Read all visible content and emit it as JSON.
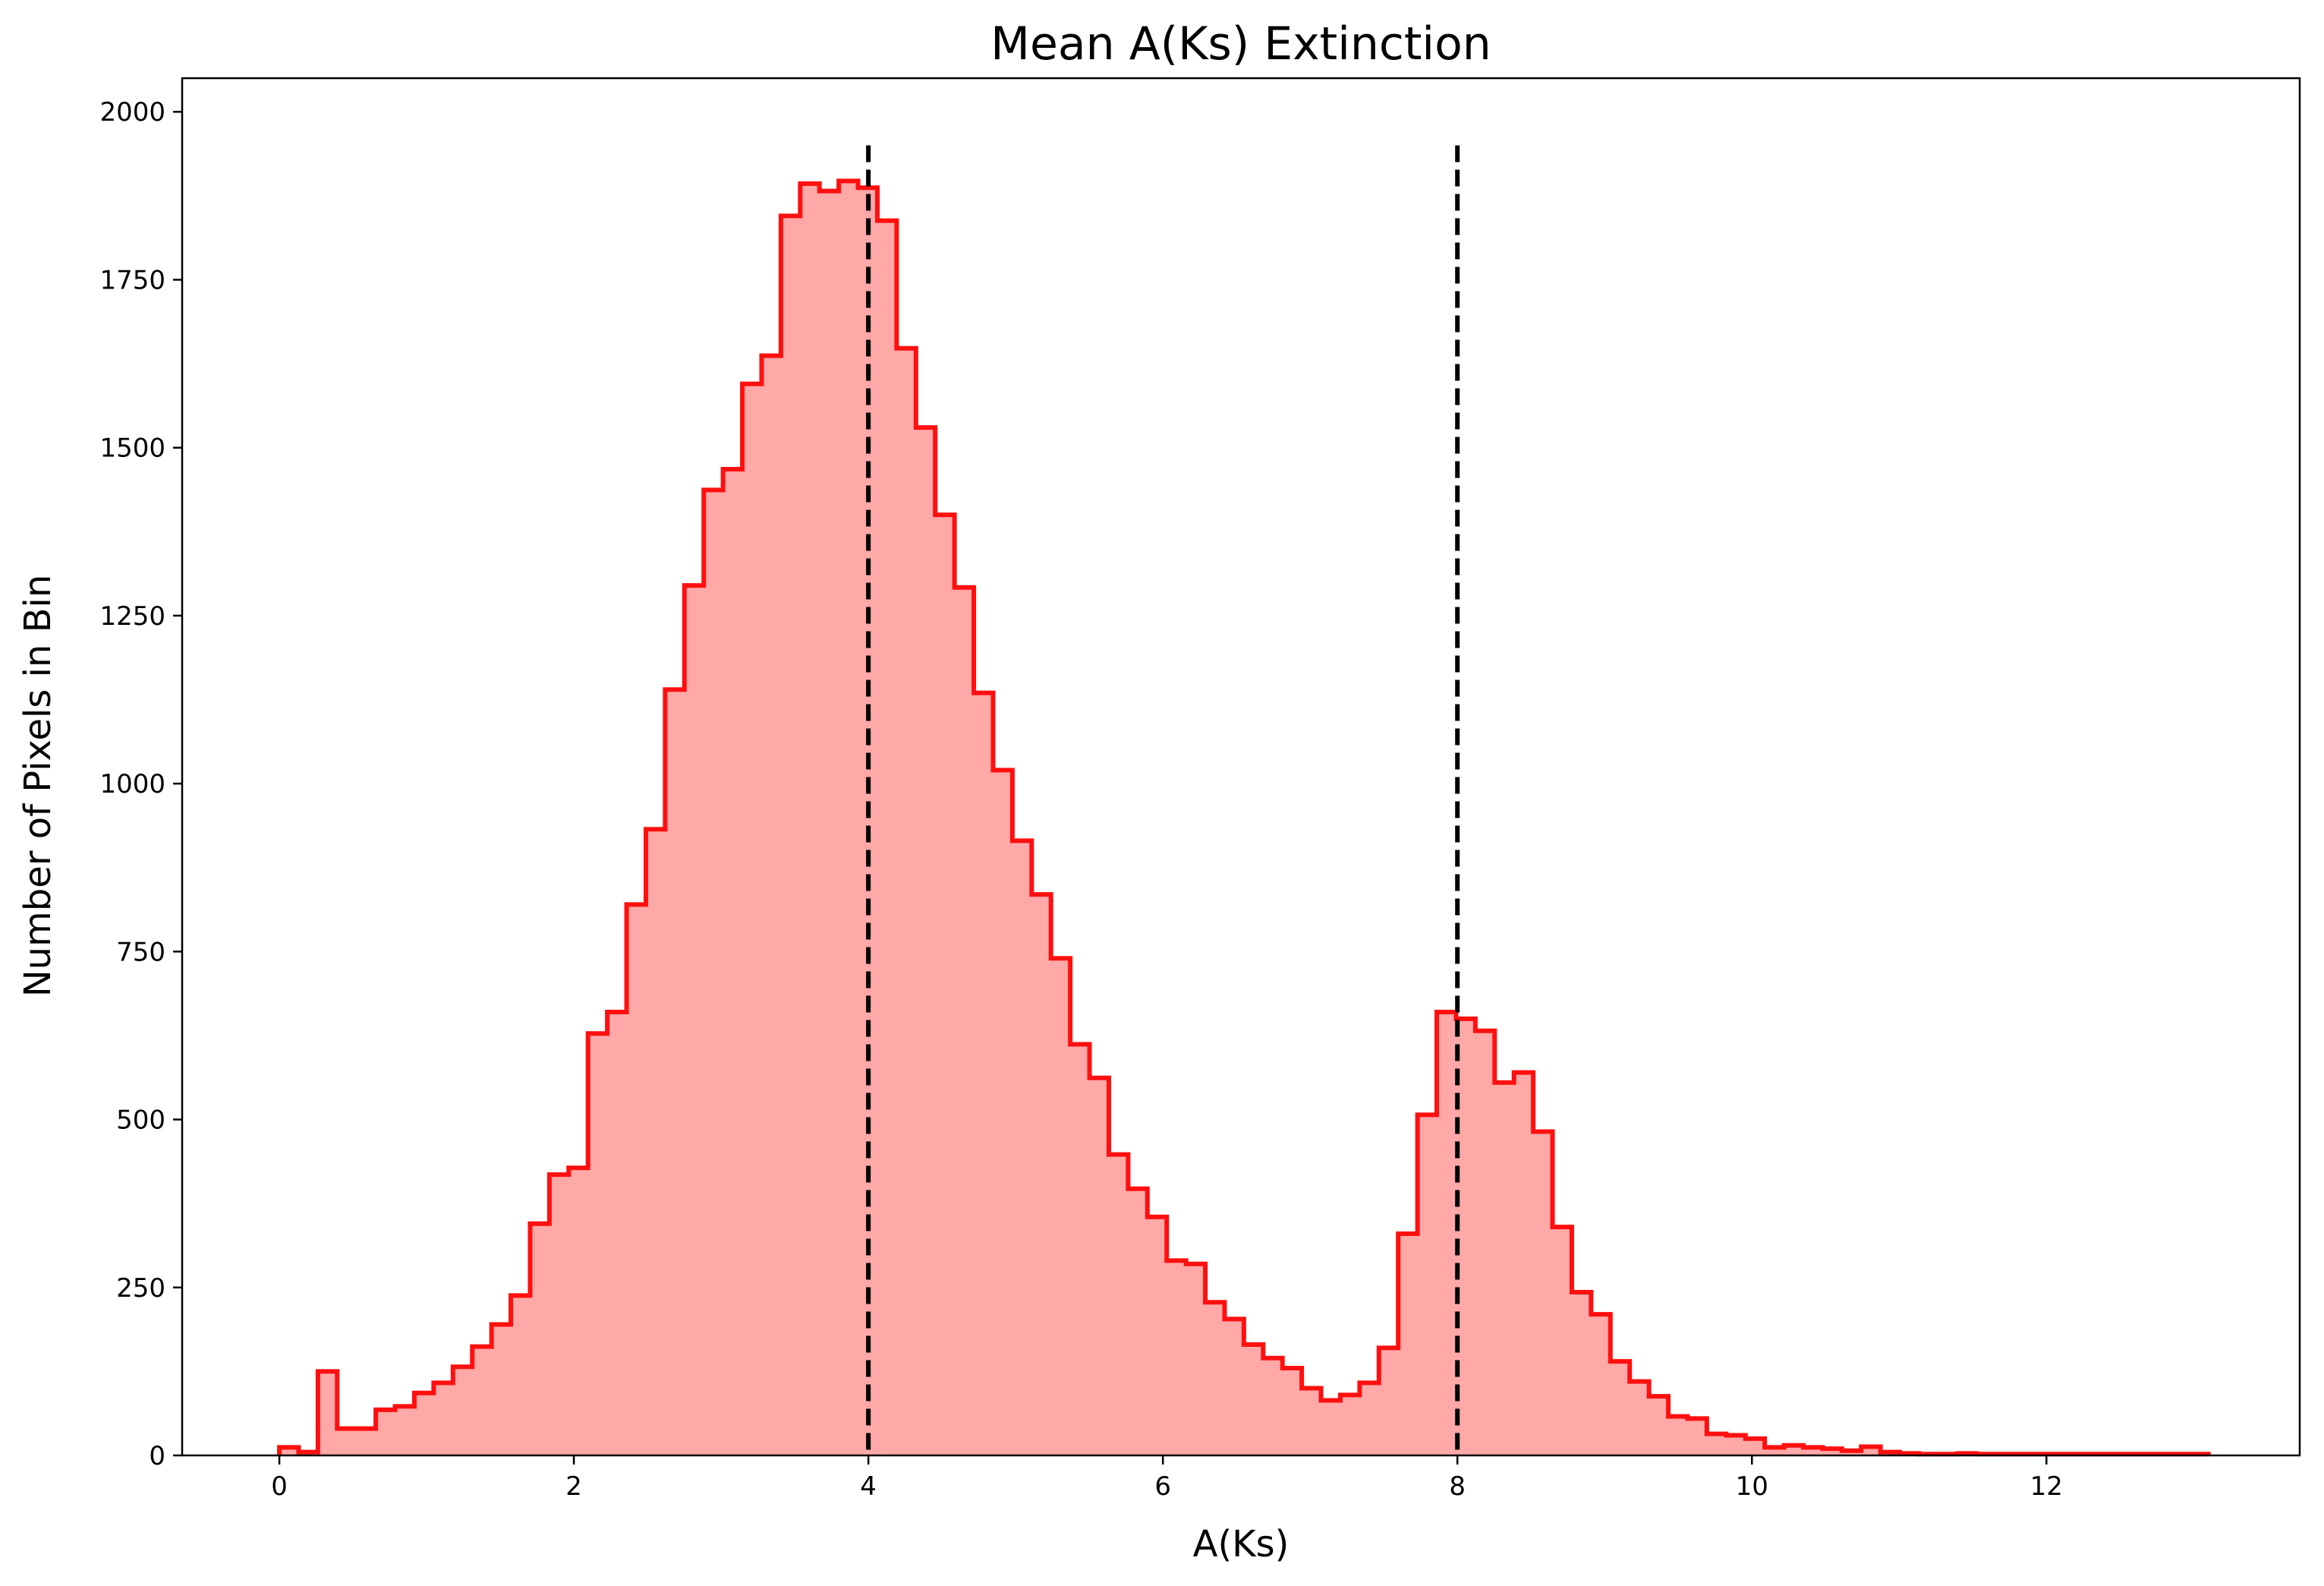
{
  "chart_data": {
    "type": "histogram",
    "title": "Mean A(Ks) Extinction",
    "xlabel": "A(Ks)",
    "ylabel": "Number of Pixels in Bin",
    "xlim": [
      -0.66,
      13.72
    ],
    "ylim": [
      0,
      2050
    ],
    "xticks": [
      0,
      2,
      4,
      6,
      8,
      10,
      12
    ],
    "yticks": [
      0,
      250,
      500,
      750,
      1000,
      1250,
      1500,
      1750,
      2000
    ],
    "grid": false,
    "bin_start": 0.0,
    "bin_width": 0.131,
    "counts": [
      12,
      5,
      125,
      40,
      40,
      68,
      73,
      93,
      108,
      132,
      162,
      195,
      238,
      345,
      418,
      428,
      628,
      660,
      820,
      932,
      1140,
      1295,
      1437,
      1468,
      1595,
      1637,
      1845,
      1893,
      1882,
      1897,
      1887,
      1838,
      1648,
      1530,
      1400,
      1292,
      1135,
      1020,
      915,
      835,
      740,
      612,
      562,
      448,
      397,
      355,
      290,
      285,
      228,
      203,
      165,
      145,
      130,
      100,
      82,
      90,
      108,
      160,
      330,
      507,
      660,
      650,
      632,
      555,
      570,
      482,
      340,
      243,
      210,
      140,
      110,
      88,
      58,
      55,
      32,
      30,
      25,
      12,
      15,
      12,
      10,
      7,
      13,
      5,
      3,
      2,
      2,
      3,
      2,
      2,
      2,
      2,
      2,
      2,
      2,
      2,
      2,
      2,
      2,
      2
    ],
    "reference_lines": [
      4,
      8
    ],
    "colors": {
      "fill": "#ffa8a8",
      "edge": "#ff0f0f",
      "reference_line": "#000000"
    }
  }
}
